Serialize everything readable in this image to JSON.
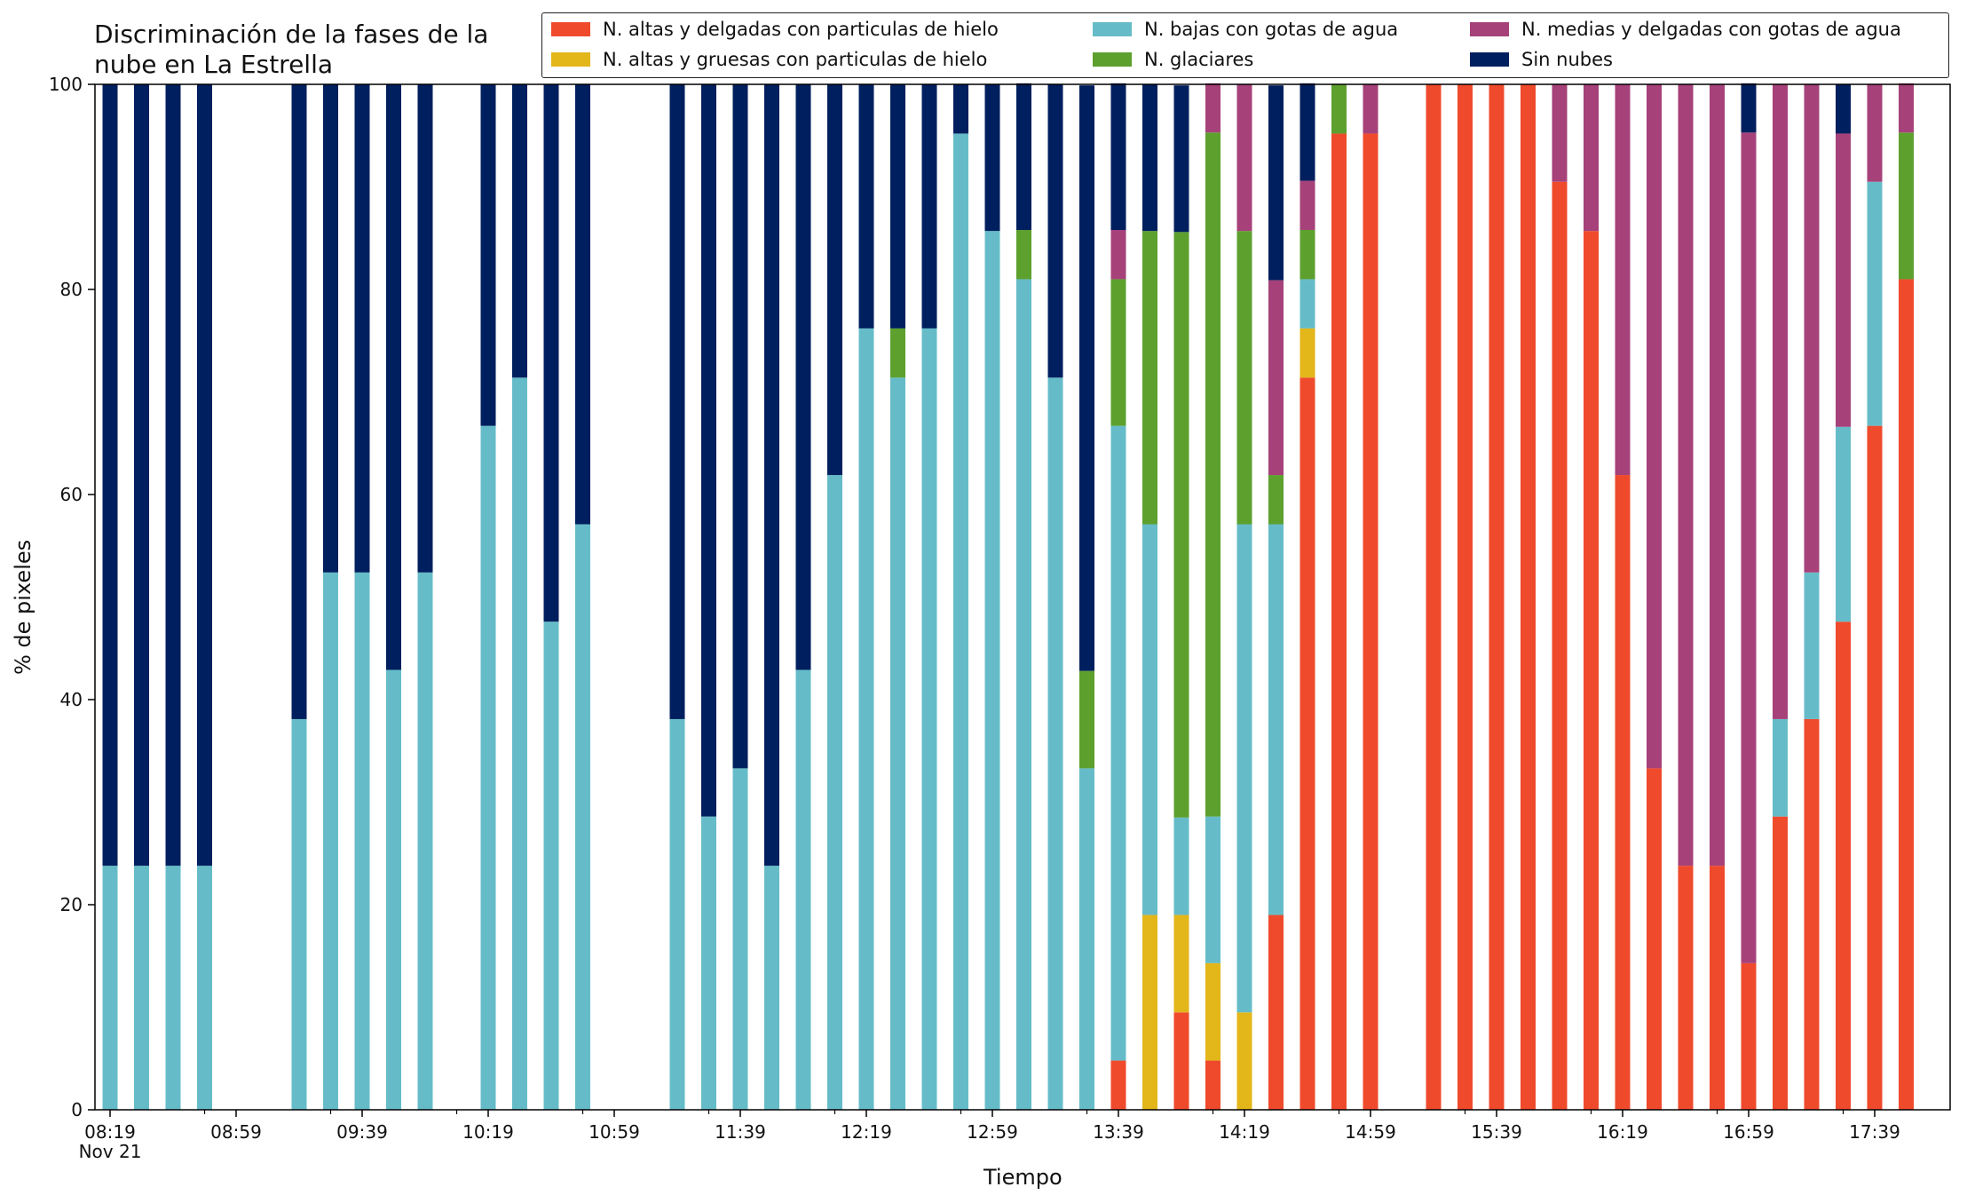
{
  "chart_data": {
    "type": "bar",
    "stacked": true,
    "title": "Discriminación de la fases de la nube en La Estrella",
    "xlabel": "Tiempo",
    "ylabel": "% de pixeles",
    "ylim": [
      0,
      100
    ],
    "yticks": [
      "0",
      "20",
      "40",
      "60",
      "80",
      "100"
    ],
    "xtick_labels": [
      "08:19\nNov 21",
      "08:59",
      "09:39",
      "10:19",
      "10:59",
      "11:39",
      "12:19",
      "12:59",
      "13:39",
      "14:19",
      "14:59",
      "15:39",
      "16:19",
      "16:59",
      "17:39"
    ],
    "x_start": "08:19",
    "x_step_minutes": 10,
    "legend_position": "top-right",
    "series": [
      {
        "name": "N. altas y delgadas con particulas de hielo",
        "color": "#ef4a2c",
        "values": [
          0,
          0,
          0,
          0,
          null,
          null,
          0,
          0,
          0,
          0,
          0,
          null,
          0,
          0,
          0,
          0,
          null,
          null,
          0,
          0,
          0,
          0,
          0,
          0,
          0,
          0,
          0,
          0,
          0,
          0,
          0,
          0,
          4.8,
          0,
          9.5,
          4.8,
          0,
          19,
          71.4,
          95.2,
          95.2,
          null,
          100,
          100,
          100,
          100,
          90.5,
          85.7,
          61.9,
          33.3,
          23.8,
          23.8,
          14.3,
          28.6,
          38.1,
          47.6,
          66.7,
          81
        ]
      },
      {
        "name": "N. altas y gruesas con particulas de hielo",
        "color": "#e3b61a",
        "values": [
          0,
          0,
          0,
          0,
          null,
          null,
          0,
          0,
          0,
          0,
          0,
          null,
          0,
          0,
          0,
          0,
          null,
          null,
          0,
          0,
          0,
          0,
          0,
          0,
          0,
          0,
          0,
          0,
          0,
          0,
          0,
          0,
          0,
          19,
          9.5,
          9.5,
          9.5,
          0,
          4.8,
          0,
          0,
          null,
          0,
          0,
          0,
          0,
          0,
          0,
          0,
          0,
          0,
          0,
          0,
          0,
          0,
          0,
          0,
          0
        ]
      },
      {
        "name": "N. bajas con gotas de agua",
        "color": "#65bcc8",
        "values": [
          23.8,
          23.8,
          23.8,
          23.8,
          null,
          null,
          38.1,
          52.4,
          52.4,
          42.9,
          52.4,
          null,
          66.7,
          71.4,
          47.6,
          57.1,
          null,
          null,
          38.1,
          28.6,
          33.3,
          23.8,
          42.9,
          61.9,
          76.2,
          71.4,
          76.2,
          95.2,
          85.7,
          81,
          71.4,
          33.3,
          61.9,
          38.1,
          9.5,
          14.3,
          47.6,
          38.1,
          4.8,
          0,
          0,
          null,
          0,
          0,
          0,
          0,
          0,
          0,
          0,
          0,
          0,
          0,
          0,
          9.5,
          14.3,
          19,
          23.8,
          0
        ]
      },
      {
        "name": "N. glaciares",
        "color": "#5da02e",
        "values": [
          0,
          0,
          0,
          0,
          null,
          null,
          0,
          0,
          0,
          0,
          0,
          null,
          0,
          0,
          0,
          0,
          null,
          null,
          0,
          0,
          0,
          0,
          0,
          0,
          0,
          4.8,
          0,
          0,
          0,
          4.8,
          0,
          9.5,
          14.3,
          28.6,
          57.1,
          66.7,
          28.6,
          4.8,
          4.8,
          4.8,
          0,
          null,
          0,
          0,
          0,
          0,
          0,
          0,
          0,
          0,
          0,
          0,
          0,
          0,
          0,
          0,
          0,
          14.3
        ]
      },
      {
        "name": "N. medias y delgadas con gotas de agua",
        "color": "#a64179",
        "values": [
          0,
          0,
          0,
          0,
          null,
          null,
          0,
          0,
          0,
          0,
          0,
          null,
          0,
          0,
          0,
          0,
          null,
          null,
          0,
          0,
          0,
          0,
          0,
          0,
          0,
          0,
          0,
          0,
          0,
          0,
          0,
          0,
          4.8,
          0,
          0,
          4.8,
          14.3,
          19,
          4.8,
          0,
          4.8,
          null,
          0,
          0,
          0,
          0,
          9.5,
          14.3,
          38.1,
          66.7,
          76.2,
          76.2,
          81,
          61.9,
          47.6,
          28.6,
          9.5,
          4.8
        ]
      },
      {
        "name": "Sin nubes",
        "color": "#001f5e",
        "values": [
          76.2,
          76.2,
          76.2,
          76.2,
          null,
          null,
          61.9,
          47.6,
          47.6,
          57.1,
          47.6,
          null,
          33.3,
          28.6,
          52.4,
          42.9,
          null,
          null,
          61.9,
          71.4,
          66.7,
          76.2,
          57.1,
          38.1,
          23.8,
          23.8,
          23.8,
          4.8,
          14.3,
          14.3,
          28.6,
          57.1,
          14.3,
          14.3,
          14.3,
          0,
          0,
          19,
          9.5,
          0,
          0,
          null,
          0,
          0,
          0,
          0,
          0,
          0,
          0,
          0,
          0,
          0,
          4.8,
          0,
          0,
          4.8,
          0,
          0
        ]
      }
    ]
  }
}
